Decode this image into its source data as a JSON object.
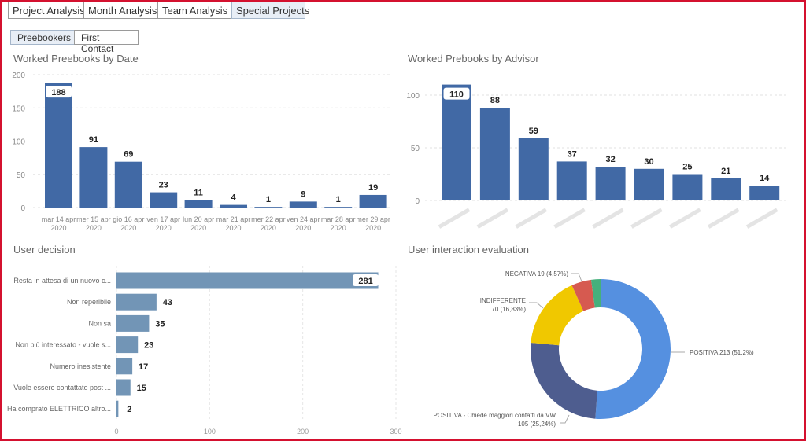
{
  "tabs": [
    {
      "label": "Project Analysis",
      "active": false
    },
    {
      "label": "Month Analysis",
      "active": false
    },
    {
      "label": "Team Analysis",
      "active": false
    },
    {
      "label": "Special Projects",
      "active": true
    }
  ],
  "subtabs": [
    {
      "label": "Preebookers",
      "active": true
    },
    {
      "label": "First Contact",
      "active": false
    }
  ],
  "colors": {
    "bar": "#4169a5",
    "hbar": "#7295b6",
    "frame": "#d4112f"
  },
  "chart_data": [
    {
      "type": "bar",
      "title": "Worked Preebooks by Date",
      "categories": [
        [
          "mar 14 apr",
          "2020"
        ],
        [
          "mer 15 apr",
          "2020"
        ],
        [
          "gio 16 apr",
          "2020"
        ],
        [
          "ven 17 apr",
          "2020"
        ],
        [
          "lun 20 apr",
          "2020"
        ],
        [
          "mar 21 apr",
          "2020"
        ],
        [
          "mer 22 apr",
          "2020"
        ],
        [
          "ven 24 apr",
          "2020"
        ],
        [
          "mar 28 apr",
          "2020"
        ],
        [
          "mer 29 apr",
          "2020"
        ]
      ],
      "values": [
        188,
        91,
        69,
        23,
        11,
        4,
        1,
        9,
        1,
        19
      ],
      "yticks": [
        0,
        50,
        100,
        150,
        200
      ],
      "ylim": [
        0,
        200
      ],
      "grid": true
    },
    {
      "type": "bar",
      "title": "Worked Prebooks by Advisor",
      "categories_blurred": true,
      "values": [
        110,
        88,
        59,
        37,
        32,
        30,
        25,
        21,
        14
      ],
      "yticks": [
        0,
        50,
        100
      ],
      "ylim": [
        0,
        110
      ],
      "grid": true
    },
    {
      "type": "bar",
      "orientation": "horizontal",
      "title": "User decision",
      "categories": [
        "Resta in attesa di un nuovo c...",
        "Non reperibile",
        "Non sa",
        "Non più interessato - vuole s...",
        "Numero inesistente",
        "Vuole essere contattato post ...",
        "Ha comprato ELETTRICO altro..."
      ],
      "values": [
        281,
        43,
        35,
        23,
        17,
        15,
        2
      ],
      "xticks": [
        0,
        100,
        200,
        300
      ],
      "xlim": [
        0,
        300
      ],
      "grid": true
    },
    {
      "type": "pie",
      "donut": true,
      "title": "User interaction evaluation",
      "slices": [
        {
          "label": "POSITIVA 213 (51,2%)",
          "value": 213,
          "color": "#5590e0"
        },
        {
          "label": "POSITIVA - Chiede maggiori contatti da VW|105 (25,24%)",
          "value": 105,
          "color": "#4e5d8f"
        },
        {
          "label": "INDIFFERENTE|70 (16,83%)",
          "value": 70,
          "color": "#f0c800"
        },
        {
          "label": "NEGATIVA 19 (4,57%)",
          "value": 19,
          "color": "#d65a50"
        },
        {
          "label": "",
          "value": 9,
          "color": "#45b07c"
        }
      ]
    }
  ]
}
